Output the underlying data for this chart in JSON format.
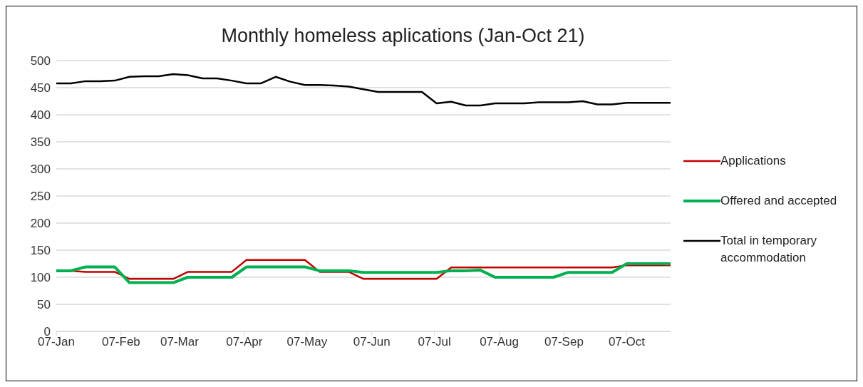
{
  "chart_data": {
    "type": "line",
    "title": "Monthly homeless aplications (Jan-Oct 21)",
    "x": [
      "--01-07",
      "--01-14",
      "--01-21",
      "--01-28",
      "--02-04",
      "--02-11",
      "--02-18",
      "--02-25",
      "--03-04",
      "--03-11",
      "--03-18",
      "--03-25",
      "--04-01",
      "--04-08",
      "--04-15",
      "--04-22",
      "--04-29",
      "--05-06",
      "--05-13",
      "--05-20",
      "--05-27",
      "--06-03",
      "--06-10",
      "--06-17",
      "--06-24",
      "--07-01",
      "--07-08",
      "--07-15",
      "--07-22",
      "--07-29",
      "--08-05",
      "--08-12",
      "--08-19",
      "--08-26",
      "--09-02",
      "--09-09",
      "--09-16",
      "--09-23",
      "--09-30",
      "--10-07",
      "--10-14",
      "--10-21",
      "--10-28"
    ],
    "series": [
      {
        "name": "Applications",
        "color": "#c00000",
        "values": [
          null,
          112,
          110,
          110,
          110,
          97,
          97,
          97,
          97,
          110,
          110,
          110,
          110,
          132,
          132,
          132,
          132,
          132,
          110,
          110,
          110,
          97,
          97,
          97,
          97,
          97,
          97,
          118,
          118,
          118,
          118,
          118,
          118,
          118,
          118,
          118,
          118,
          118,
          118,
          122,
          122,
          122,
          122
        ]
      },
      {
        "name": "Offered and accepted",
        "color": "#00b050",
        "values": [
          112,
          112,
          119,
          119,
          119,
          90,
          90,
          90,
          90,
          100,
          100,
          100,
          100,
          119,
          119,
          119,
          119,
          119,
          112,
          112,
          112,
          109,
          109,
          109,
          109,
          109,
          109,
          112,
          112,
          113,
          100,
          100,
          100,
          100,
          100,
          109,
          109,
          109,
          109,
          125,
          125,
          125,
          125
        ]
      },
      {
        "name": "Total in temporary accommodation",
        "color": "#000000",
        "values": [
          458,
          458,
          462,
          462,
          463,
          470,
          471,
          471,
          475,
          473,
          467,
          467,
          463,
          458,
          458,
          470,
          461,
          455,
          455,
          454,
          452,
          447,
          442,
          442,
          442,
          442,
          421,
          424,
          417,
          417,
          421,
          421,
          421,
          423,
          423,
          423,
          425,
          419,
          419,
          422,
          422,
          422,
          422
        ]
      }
    ],
    "xlim": [
      "--01-07",
      "--10-28"
    ],
    "xticks": [
      {
        "value": "--01-07",
        "label": "07-Jan"
      },
      {
        "value": "--02-07",
        "label": "07-Feb"
      },
      {
        "value": "--03-07",
        "label": "07-Mar"
      },
      {
        "value": "--04-07",
        "label": "07-Apr"
      },
      {
        "value": "--05-07",
        "label": "07-May"
      },
      {
        "value": "--06-07",
        "label": "07-Jun"
      },
      {
        "value": "--07-07",
        "label": "07-Jul"
      },
      {
        "value": "--08-07",
        "label": "07-Aug"
      },
      {
        "value": "--09-07",
        "label": "07-Sep"
      },
      {
        "value": "--10-07",
        "label": "07-Oct"
      }
    ],
    "ylim": [
      0,
      500
    ],
    "yticks": [
      0,
      50,
      100,
      150,
      200,
      250,
      300,
      350,
      400,
      450,
      500
    ],
    "grid": "y",
    "legend": "right",
    "marker": "none",
    "line_style": "solid"
  }
}
